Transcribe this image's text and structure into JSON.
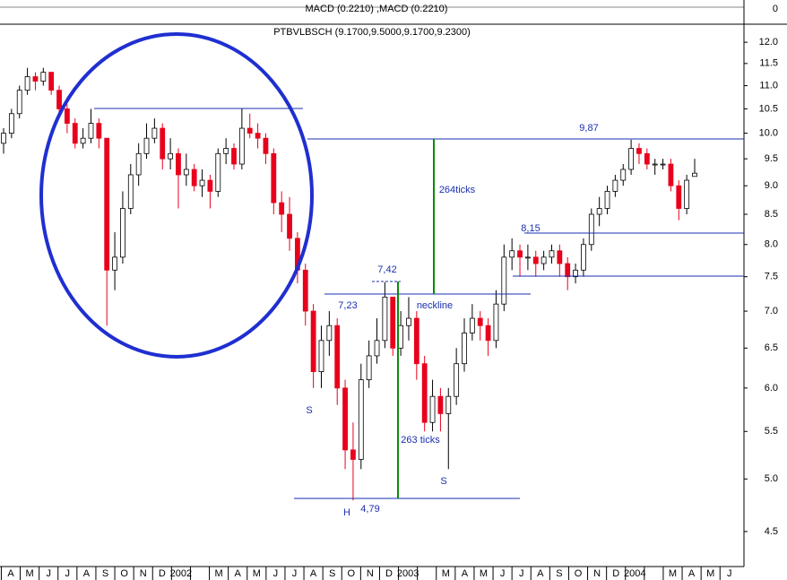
{
  "chart_data": {
    "type": "candlestick",
    "title": "PTBVLBSCH (9.1700,9.5000,9.1700,9.2300)",
    "macd_label": "MACD (0.2210) ,MACD (0.2210)",
    "macd_yticks": [
      0
    ],
    "log_scale": true,
    "ylim": [
      4.21,
      12.42
    ],
    "yticks": [
      {
        "value": 12,
        "label": "12.0"
      },
      11.5,
      {
        "value": 11,
        "label": "11.0"
      },
      10.5,
      {
        "value": 10,
        "label": "10.0"
      },
      9.5,
      {
        "value": 9,
        "label": "9.0"
      },
      8.5,
      {
        "value": 8,
        "label": "8.0"
      },
      7.5,
      {
        "value": 7,
        "label": "7.0"
      },
      6.5,
      {
        "value": 6,
        "label": "6.0"
      },
      5.5,
      {
        "value": 5,
        "label": "5.0"
      },
      4.5
    ],
    "categories": [
      "A",
      "M",
      "J",
      "J",
      "A",
      "S",
      "O",
      "N",
      "D",
      "2002",
      null,
      "M",
      "A",
      "M",
      "J",
      "J",
      "A",
      "S",
      "O",
      "N",
      "D",
      "2003",
      null,
      "M",
      "A",
      "M",
      "J",
      "J",
      "A",
      "S",
      "O",
      "N",
      "D",
      "2004",
      null,
      "M",
      "A",
      "M",
      "J"
    ],
    "up_color": "#ffffff",
    "down_color": "#e8001c",
    "candles": [
      [
        9.8,
        10.1,
        9.6,
        10.0
      ],
      [
        10.0,
        10.5,
        9.9,
        10.4
      ],
      [
        10.4,
        11.0,
        10.3,
        10.9
      ],
      [
        10.9,
        11.4,
        10.8,
        11.2
      ],
      [
        11.2,
        11.3,
        10.9,
        11.1
      ],
      [
        11.1,
        11.4,
        11.0,
        11.3
      ],
      [
        11.3,
        11.3,
        10.8,
        10.9
      ],
      [
        10.9,
        11.0,
        10.4,
        10.5
      ],
      [
        10.5,
        10.6,
        10.0,
        10.2
      ],
      [
        10.2,
        10.3,
        9.7,
        9.8
      ],
      [
        9.8,
        10.1,
        9.7,
        9.9
      ],
      [
        9.9,
        10.5,
        9.8,
        10.2
      ],
      [
        10.2,
        10.3,
        9.7,
        9.9
      ],
      [
        9.9,
        9.9,
        6.8,
        7.6
      ],
      [
        7.6,
        8.2,
        7.3,
        7.8
      ],
      [
        7.8,
        8.9,
        7.7,
        8.6
      ],
      [
        8.6,
        9.4,
        8.5,
        9.2
      ],
      [
        9.2,
        9.8,
        9.0,
        9.6
      ],
      [
        9.6,
        10.2,
        9.5,
        9.9
      ],
      [
        9.9,
        10.3,
        9.8,
        10.1
      ],
      [
        10.1,
        10.2,
        9.3,
        9.5
      ],
      [
        9.5,
        9.9,
        9.3,
        9.6
      ],
      [
        9.6,
        9.7,
        8.6,
        9.2
      ],
      [
        9.2,
        9.6,
        9.0,
        9.3
      ],
      [
        9.3,
        9.4,
        8.9,
        9.0
      ],
      [
        9.0,
        9.3,
        8.8,
        9.1
      ],
      [
        9.1,
        9.2,
        8.6,
        8.9
      ],
      [
        8.9,
        9.7,
        8.8,
        9.6
      ],
      [
        9.6,
        9.9,
        9.4,
        9.7
      ],
      [
        9.7,
        9.8,
        9.3,
        9.4
      ],
      [
        9.4,
        10.5,
        9.3,
        10.1
      ],
      [
        10.1,
        10.4,
        9.9,
        10.0
      ],
      [
        10.0,
        10.2,
        9.7,
        9.9
      ],
      [
        9.9,
        10.0,
        9.4,
        9.6
      ],
      [
        9.6,
        9.7,
        8.5,
        8.7
      ],
      [
        8.7,
        8.9,
        8.2,
        8.5
      ],
      [
        8.5,
        8.8,
        7.9,
        8.1
      ],
      [
        8.1,
        8.2,
        7.4,
        7.6
      ],
      [
        7.6,
        7.7,
        6.8,
        7.0
      ],
      [
        7.0,
        7.1,
        6.0,
        6.2
      ],
      [
        6.2,
        6.8,
        6.0,
        6.6
      ],
      [
        6.6,
        7.0,
        6.4,
        6.8
      ],
      [
        6.8,
        6.9,
        5.8,
        6.0
      ],
      [
        6.0,
        6.1,
        5.1,
        5.3
      ],
      [
        5.3,
        5.6,
        4.79,
        5.2
      ],
      [
        5.2,
        6.3,
        5.1,
        6.1
      ],
      [
        6.1,
        6.6,
        6.0,
        6.4
      ],
      [
        6.4,
        6.9,
        6.3,
        6.6
      ],
      [
        6.6,
        7.42,
        6.5,
        7.2
      ],
      [
        7.2,
        7.2,
        6.4,
        6.5
      ],
      [
        6.5,
        7.0,
        6.4,
        6.8
      ],
      [
        6.8,
        7.2,
        6.6,
        6.9
      ],
      [
        6.9,
        7.0,
        6.1,
        6.3
      ],
      [
        6.3,
        6.4,
        5.5,
        5.6
      ],
      [
        5.6,
        6.1,
        5.5,
        5.9
      ],
      [
        5.9,
        6.0,
        5.5,
        5.7
      ],
      [
        5.7,
        6.0,
        5.1,
        5.9
      ],
      [
        5.9,
        6.5,
        5.8,
        6.3
      ],
      [
        6.3,
        6.9,
        6.2,
        6.7
      ],
      [
        6.7,
        7.1,
        6.6,
        6.9
      ],
      [
        6.9,
        7.0,
        6.6,
        6.8
      ],
      [
        6.8,
        6.9,
        6.4,
        6.6
      ],
      [
        6.6,
        7.3,
        6.5,
        7.1
      ],
      [
        7.1,
        8.0,
        7.0,
        7.8
      ],
      [
        7.8,
        8.1,
        7.6,
        7.9
      ],
      [
        7.9,
        8.0,
        7.5,
        7.8
      ],
      [
        7.8,
        8.0,
        7.6,
        7.8
      ],
      [
        7.8,
        7.9,
        7.5,
        7.7
      ],
      [
        7.7,
        7.9,
        7.6,
        7.8
      ],
      [
        7.8,
        8.0,
        7.7,
        7.9
      ],
      [
        7.9,
        8.0,
        7.5,
        7.7
      ],
      [
        7.7,
        7.8,
        7.3,
        7.5
      ],
      [
        7.5,
        7.7,
        7.4,
        7.6
      ],
      [
        7.6,
        8.1,
        7.5,
        8.0
      ],
      [
        8.0,
        8.6,
        7.9,
        8.5
      ],
      [
        8.5,
        8.8,
        8.3,
        8.6
      ],
      [
        8.6,
        9.0,
        8.5,
        8.9
      ],
      [
        8.9,
        9.2,
        8.8,
        9.1
      ],
      [
        9.1,
        9.4,
        9.0,
        9.3
      ],
      [
        9.3,
        9.87,
        9.2,
        9.7
      ],
      [
        9.7,
        9.8,
        9.4,
        9.6
      ],
      [
        9.6,
        9.7,
        9.3,
        9.4
      ],
      [
        9.4,
        9.5,
        9.2,
        9.4
      ],
      [
        9.4,
        9.5,
        9.3,
        9.4
      ],
      [
        9.4,
        9.5,
        8.9,
        9.0
      ],
      [
        9.0,
        9.1,
        8.4,
        8.6
      ],
      [
        8.6,
        9.2,
        8.5,
        9.1
      ],
      [
        9.17,
        9.5,
        9.17,
        9.23
      ]
    ],
    "annotations": [
      "9,87",
      "8,15",
      "7,42",
      "7,23",
      "neckline",
      "264ticks",
      "263 ticks",
      "S",
      "S",
      "H",
      "4,79"
    ]
  }
}
